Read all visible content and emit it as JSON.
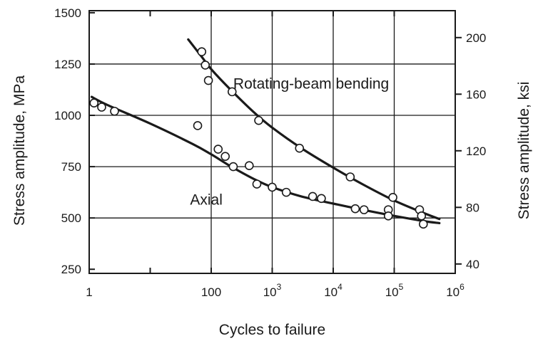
{
  "chart_data": {
    "type": "scatter",
    "title": "",
    "xlabel": "Cycles to failure",
    "ylabel": "Stress amplitude, MPa",
    "y2label": "Stress amplitude, ksi",
    "x_scale": "log",
    "xlim": [
      1,
      1000000
    ],
    "ylim": [
      230,
      1510
    ],
    "y2lim": [
      33.36,
      219.01
    ],
    "grid": true,
    "legend": "none",
    "x_ticks": [
      {
        "value": 1,
        "label": "1",
        "sup": ""
      },
      {
        "value": 100,
        "label": "100",
        "sup": ""
      },
      {
        "value": 1000,
        "label": "10",
        "sup": "3"
      },
      {
        "value": 10000,
        "label": "10",
        "sup": "4"
      },
      {
        "value": 100000,
        "label": "10",
        "sup": "5"
      },
      {
        "value": 1000000,
        "label": "10",
        "sup": "6"
      }
    ],
    "x_grid": [
      100,
      1000,
      10000,
      100000
    ],
    "x_minor_ticks": [
      10
    ],
    "y_ticks": [
      {
        "value": 250,
        "label": "250"
      },
      {
        "value": 500,
        "label": "500"
      },
      {
        "value": 750,
        "label": "750"
      },
      {
        "value": 1000,
        "label": "1000"
      },
      {
        "value": 1250,
        "label": "1250"
      },
      {
        "value": 1500,
        "label": "1500"
      }
    ],
    "y_grid": [
      500,
      750,
      1000,
      1250
    ],
    "y2_ticks": [
      {
        "value": 40,
        "label": "40"
      },
      {
        "value": 80,
        "label": "80"
      },
      {
        "value": 120,
        "label": "120"
      },
      {
        "value": 160,
        "label": "160"
      },
      {
        "value": 200,
        "label": "200"
      }
    ],
    "annotations": [
      {
        "text": "Rotating-beam bending",
        "x": 230,
        "y": 1130
      },
      {
        "text": "Axial",
        "x": 45,
        "y": 565
      }
    ],
    "series": [
      {
        "name": "Rotating-beam bending",
        "points": [
          [
            70,
            1310
          ],
          [
            80,
            1245
          ],
          [
            90,
            1170
          ],
          [
            220,
            1115
          ],
          [
            600,
            975
          ],
          [
            2800,
            840
          ],
          [
            19000,
            700
          ],
          [
            95000,
            600
          ],
          [
            260000,
            540
          ],
          [
            280000,
            510
          ]
        ],
        "curve": [
          [
            42,
            1370
          ],
          [
            70,
            1285
          ],
          [
            100,
            1225
          ],
          [
            200,
            1130
          ],
          [
            500,
            1015
          ],
          [
            1000,
            940
          ],
          [
            3000,
            840
          ],
          [
            10000,
            745
          ],
          [
            30000,
            665
          ],
          [
            100000,
            585
          ],
          [
            300000,
            525
          ],
          [
            550000,
            495
          ]
        ]
      },
      {
        "name": "Axial",
        "points": [
          [
            1.2,
            1060
          ],
          [
            1.6,
            1040
          ],
          [
            2.6,
            1020
          ],
          [
            60,
            950
          ],
          [
            130,
            835
          ],
          [
            170,
            800
          ],
          [
            230,
            750
          ],
          [
            420,
            755
          ],
          [
            560,
            665
          ],
          [
            1000,
            650
          ],
          [
            1700,
            625
          ],
          [
            4600,
            605
          ],
          [
            6400,
            595
          ],
          [
            23000,
            545
          ],
          [
            32000,
            540
          ],
          [
            80000,
            540
          ],
          [
            80000,
            510
          ],
          [
            300000,
            470
          ]
        ],
        "curve": [
          [
            1.1,
            1090
          ],
          [
            2,
            1050
          ],
          [
            10,
            960
          ],
          [
            50,
            860
          ],
          [
            100,
            810
          ],
          [
            200,
            755
          ],
          [
            500,
            690
          ],
          [
            1000,
            650
          ],
          [
            3000,
            605
          ],
          [
            10000,
            570
          ],
          [
            30000,
            540
          ],
          [
            100000,
            510
          ],
          [
            300000,
            485
          ],
          [
            550000,
            475
          ]
        ]
      }
    ]
  }
}
